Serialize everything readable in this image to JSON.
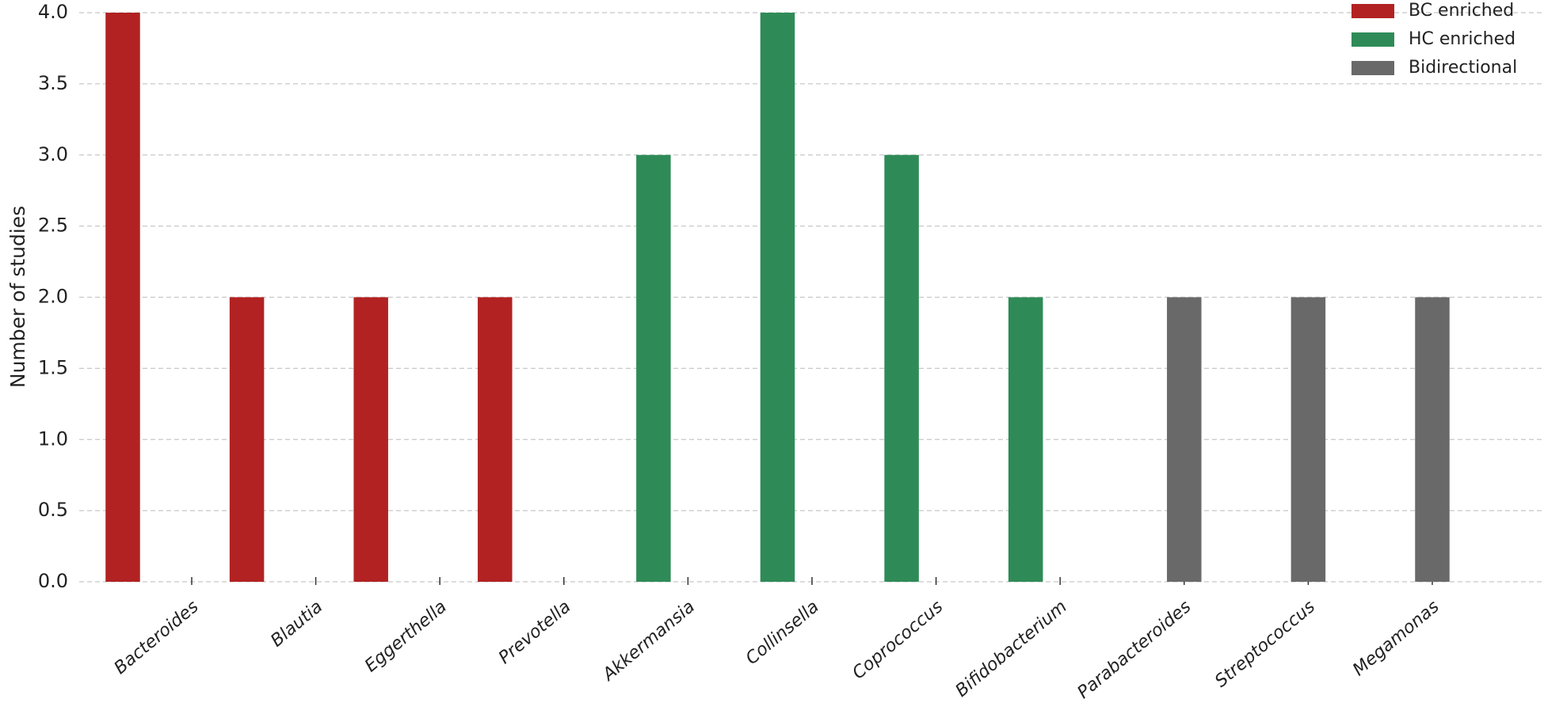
{
  "chart_data": {
    "type": "bar",
    "ylabel": "Number of studies",
    "categories": [
      "Bacteroides",
      "Blautia",
      "Eggerthella",
      "Prevotella",
      "Akkermansia",
      "Collinsella",
      "Coprococcus",
      "Bifidobacterium",
      "Parabacteroides",
      "Streptococcus",
      "Megamonas"
    ],
    "series": [
      {
        "name": "BC enriched",
        "color": "#b22222",
        "values": [
          4,
          2,
          2,
          2,
          null,
          null,
          null,
          null,
          null,
          null,
          null
        ]
      },
      {
        "name": "HC enriched",
        "color": "#2e8b57",
        "values": [
          null,
          null,
          null,
          null,
          3,
          4,
          3,
          2,
          null,
          null,
          null
        ]
      },
      {
        "name": "Bidirectional",
        "color": "#696969",
        "values": [
          null,
          null,
          null,
          null,
          null,
          null,
          null,
          null,
          2,
          2,
          2
        ]
      }
    ],
    "ylim": [
      0,
      4
    ],
    "yticks": [
      {
        "value": 0,
        "label": "0.0"
      },
      0.5,
      {
        "value": 1,
        "label": "1.0"
      },
      1.5,
      {
        "value": 2,
        "label": "2.0"
      },
      2.5,
      {
        "value": 3,
        "label": "3.0"
      },
      3.5,
      {
        "value": 4,
        "label": "4.0"
      }
    ],
    "grid": true,
    "legend": "upper right"
  }
}
